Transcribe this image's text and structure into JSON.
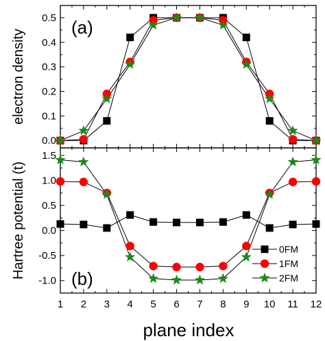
{
  "chart_data": [
    {
      "type": "line",
      "panel_label": "(a)",
      "ylabel": "electron density",
      "ylim": [
        -0.03,
        0.55
      ],
      "yticks": [
        "0.0",
        "0.1",
        "0.2",
        "0.3",
        "0.4",
        "0.5"
      ],
      "ytick_values": [
        0.0,
        0.1,
        0.2,
        0.3,
        0.4,
        0.5
      ],
      "x": [
        1,
        2,
        3,
        4,
        5,
        6,
        7,
        8,
        9,
        10,
        11,
        12
      ],
      "series": [
        {
          "name": "0FM",
          "marker": "square",
          "color": "#000000",
          "values": [
            0.0,
            0.0,
            0.08,
            0.42,
            0.5,
            0.5,
            0.5,
            0.5,
            0.42,
            0.08,
            0.0,
            0.0
          ]
        },
        {
          "name": "1FM",
          "marker": "circle",
          "color": "#ff0000",
          "values": [
            0.0,
            0.005,
            0.19,
            0.32,
            0.49,
            0.5,
            0.5,
            0.49,
            0.32,
            0.19,
            0.005,
            0.0
          ]
        },
        {
          "name": "2FM",
          "marker": "star",
          "color": "#1a8a1a",
          "values": [
            0.0,
            0.04,
            0.17,
            0.31,
            0.47,
            0.5,
            0.5,
            0.47,
            0.31,
            0.17,
            0.04,
            0.0
          ]
        }
      ]
    },
    {
      "type": "line",
      "panel_label": "(b)",
      "ylabel": "Hartree potential (t)",
      "xlabel": "plane index",
      "ylim": [
        -1.25,
        1.65
      ],
      "yticks": [
        "-1.0",
        "-0.5",
        "0.0",
        "0.5",
        "1.0",
        "1.5"
      ],
      "ytick_values": [
        -1.0,
        -0.5,
        0.0,
        0.5,
        1.0,
        1.5
      ],
      "xticks": [
        "1",
        "2",
        "3",
        "4",
        "5",
        "6",
        "7",
        "8",
        "9",
        "10",
        "11",
        "12"
      ],
      "x": [
        1,
        2,
        3,
        4,
        5,
        6,
        7,
        8,
        9,
        10,
        11,
        12
      ],
      "legend_position": "bottom-right",
      "series": [
        {
          "name": "0FM",
          "marker": "square",
          "color": "#000000",
          "values": [
            0.13,
            0.12,
            0.05,
            0.31,
            0.17,
            0.16,
            0.16,
            0.17,
            0.31,
            0.05,
            0.12,
            0.13
          ]
        },
        {
          "name": "1FM",
          "marker": "circle",
          "color": "#ff0000",
          "values": [
            0.98,
            0.97,
            0.75,
            -0.31,
            -0.71,
            -0.73,
            -0.73,
            -0.71,
            -0.31,
            0.75,
            0.97,
            0.98
          ]
        },
        {
          "name": "2FM",
          "marker": "star",
          "color": "#1a8a1a",
          "values": [
            1.41,
            1.37,
            0.72,
            -0.53,
            -0.96,
            -0.99,
            -0.99,
            -0.96,
            -0.53,
            0.72,
            1.37,
            1.41
          ]
        }
      ]
    }
  ]
}
